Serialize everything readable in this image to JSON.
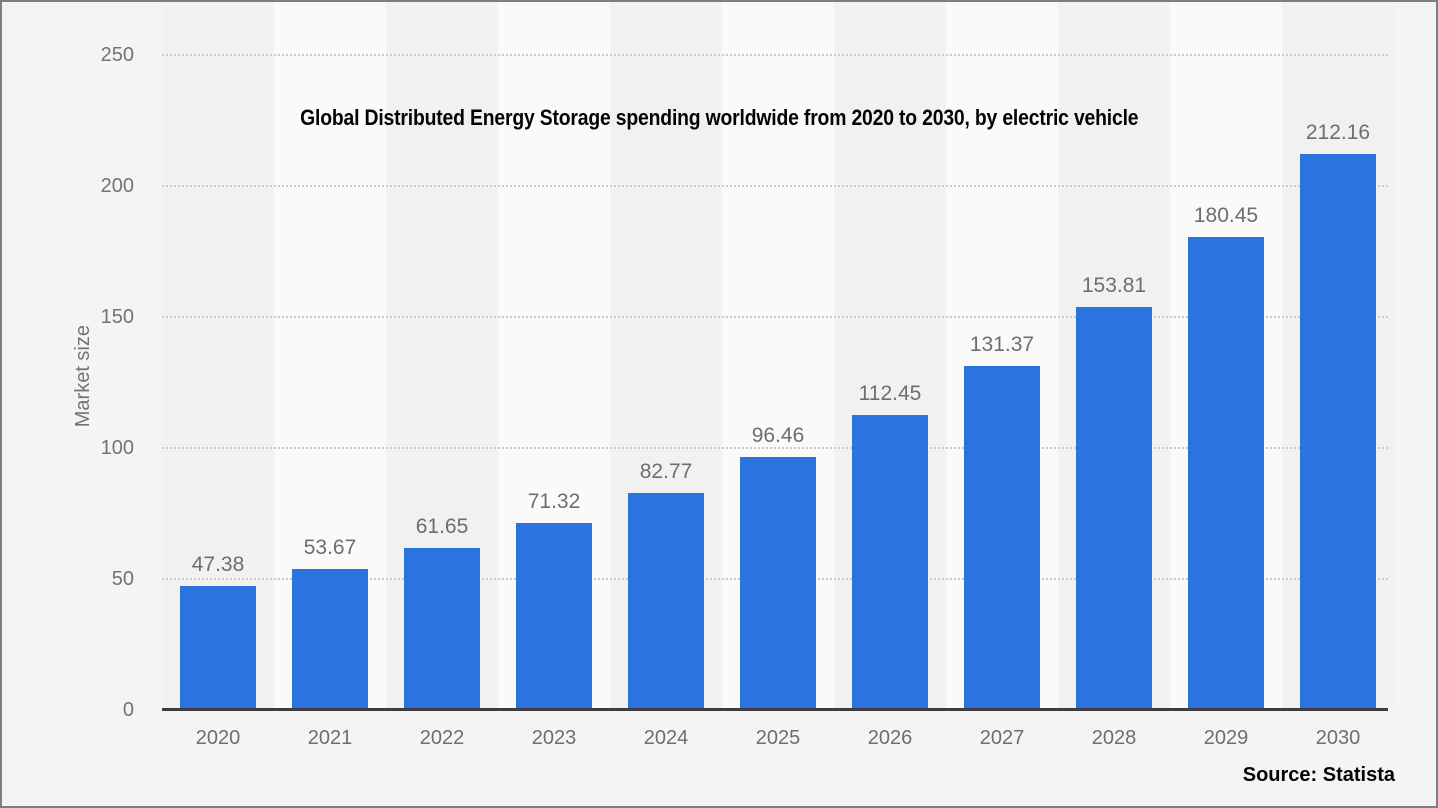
{
  "title": "Global Distributed Energy Storage spending worldwide from 2020 to 2030, by electric vehicle",
  "source": "Source: Statista",
  "y_axis": {
    "label": "Market size",
    "ticks": [
      0,
      50,
      100,
      150,
      200,
      250
    ]
  },
  "chart_data": {
    "type": "bar",
    "title": "Global Distributed Energy Storage spending worldwide from 2020 to 2030, by electric vehicle",
    "categories": [
      "2020",
      "2021",
      "2022",
      "2023",
      "2024",
      "2025",
      "2026",
      "2027",
      "2028",
      "2029",
      "2030"
    ],
    "values": [
      47.38,
      53.67,
      61.65,
      71.32,
      82.77,
      96.46,
      112.45,
      131.37,
      153.81,
      180.45,
      212.16
    ],
    "xlabel": "",
    "ylabel": "Market size",
    "ylim": [
      0,
      250
    ],
    "yticks": [
      0,
      50,
      100,
      150,
      200,
      250
    ],
    "grid": "horizontal-dotted",
    "legend": "none",
    "value_labels": true,
    "source": "Source: Statista"
  },
  "colors": {
    "bar": "#2b74dd",
    "background": "#f4f4f4",
    "band_dark": "#f1f1f1",
    "band_light": "#fafafa",
    "gridline": "#cbcbcb",
    "axis_line": "#3d3d3d",
    "tick_text": "#737373",
    "value_text": "#6e6e6e",
    "title_text": "#040404",
    "border": "#7e7e7e"
  }
}
